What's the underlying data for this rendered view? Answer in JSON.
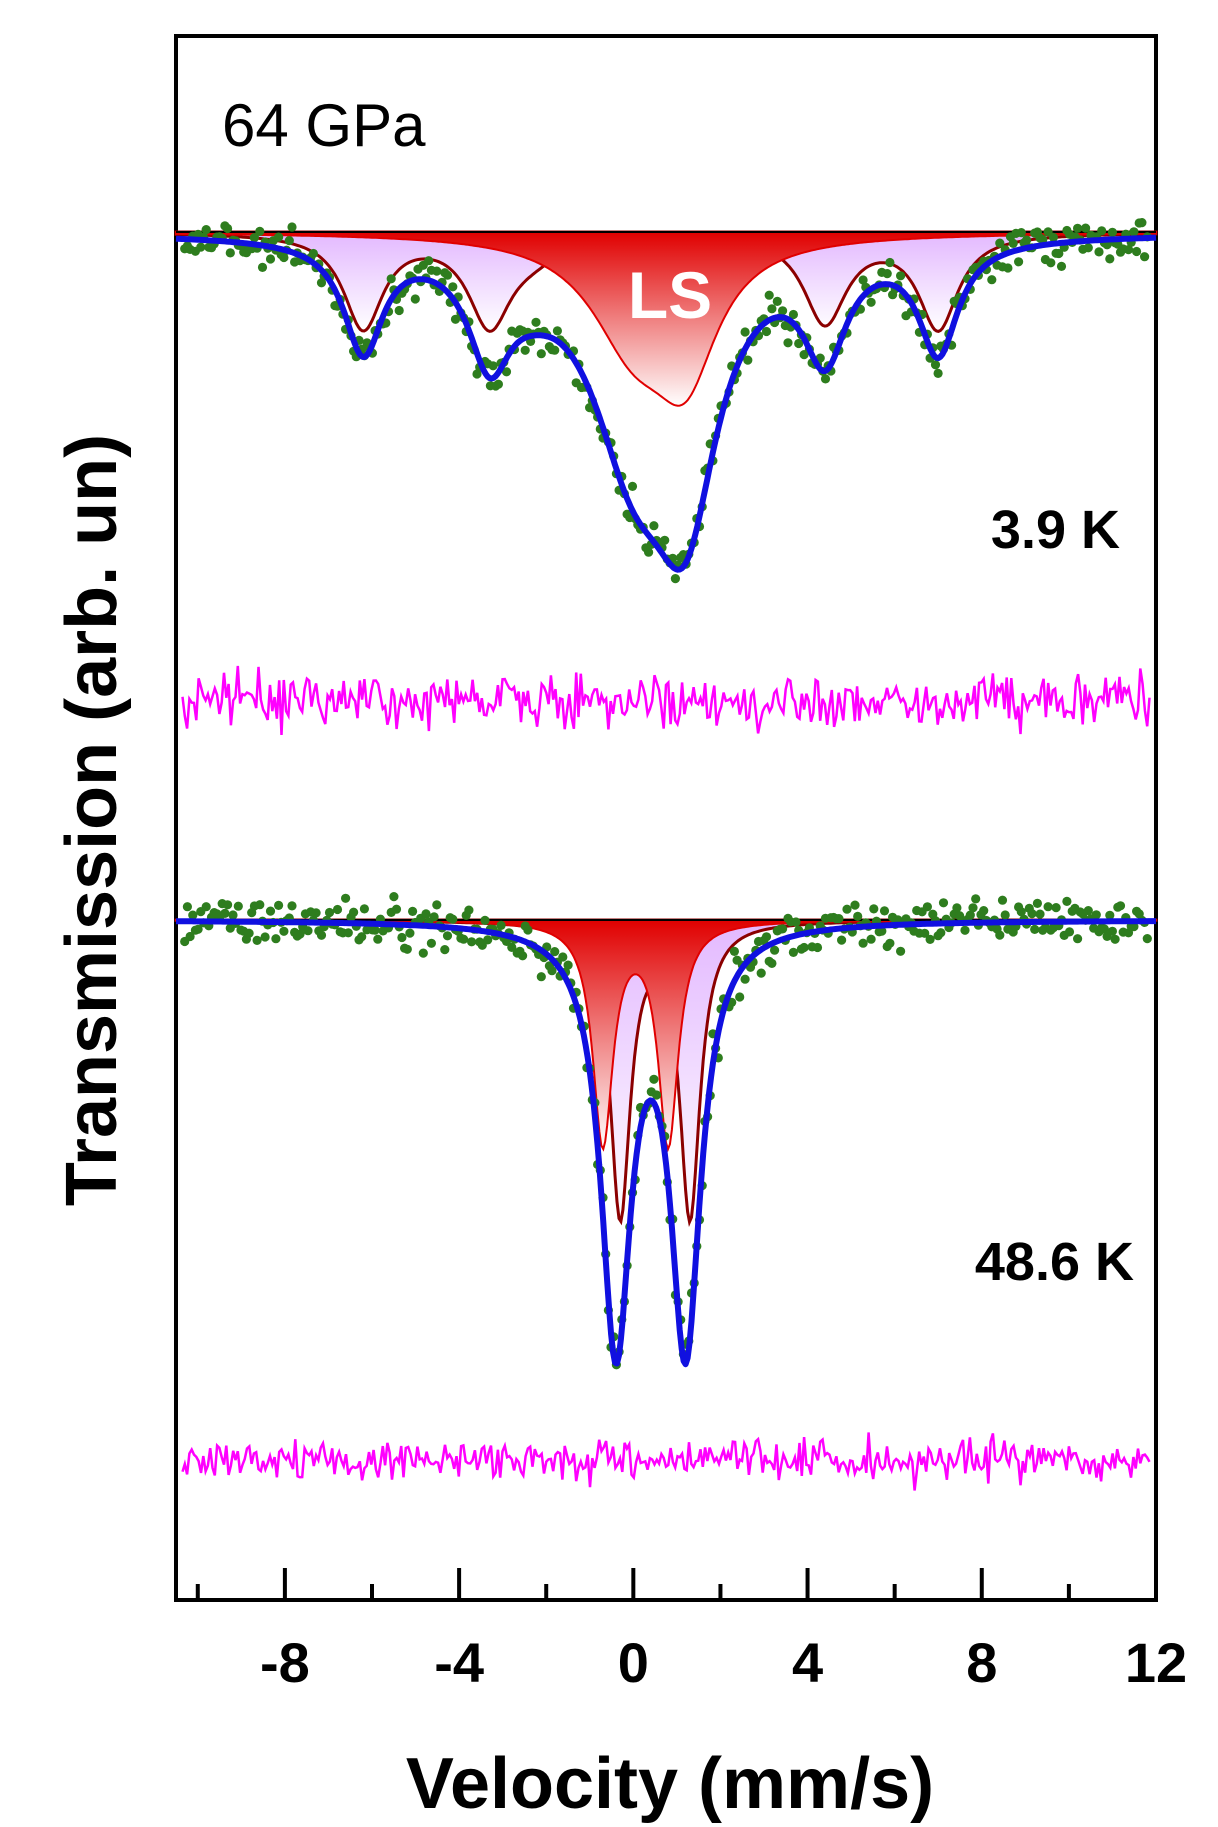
{
  "chart_data": {
    "type": "line",
    "title": "",
    "pressure_label": "64 GPa",
    "xlabel": "Velocity (mm/s)",
    "ylabel": "Transmission (arb. un)",
    "xlim": [
      -10.5,
      12
    ],
    "x_ticks": [
      -8,
      -4,
      0,
      4,
      8,
      12
    ],
    "x_tick_labels": [
      "-8",
      "-4",
      "0",
      "4",
      "8",
      "12"
    ],
    "grid": false,
    "legend": "none",
    "colors": {
      "data_points": "#2e7d1e",
      "total_fit": "#1010e0",
      "ls_component": "#e00000",
      "magnetic_component": "#e3b8ff",
      "component_outline": "#8b0000",
      "residual": "#ff00ff"
    },
    "spectra": [
      {
        "label": "3.9 K",
        "component_label": "LS",
        "baseline": 1.0,
        "minimum_total_fit": 0.62,
        "magnetic_sextet_lines_mm_s": [
          -6.2,
          -3.3,
          -2.3,
          4.4,
          7.0
        ],
        "ls_component_minima_mm_s": [
          0.0,
          1.2
        ],
        "total_fit_minima_mm_s": [
          -6.2,
          -3.3,
          -0.3,
          1.3,
          4.4,
          7.0
        ]
      },
      {
        "label": "48.6 K",
        "baseline": 1.0,
        "minimum_total_fit": 0.62,
        "total_fit_minima_mm_s": [
          -0.4,
          1.2
        ],
        "component_minima_mm_s": [
          -0.7,
          -0.3,
          0.8,
          1.3
        ]
      }
    ]
  }
}
